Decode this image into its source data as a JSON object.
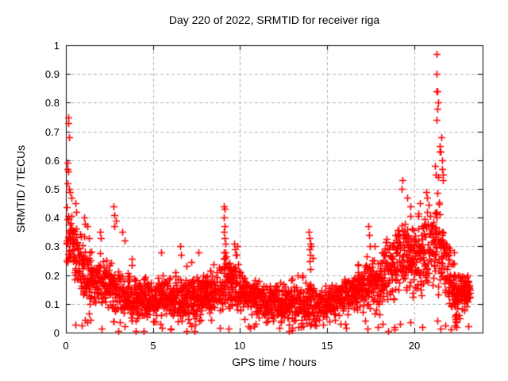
{
  "figure": {
    "title": "Day 220 of 2022, SRMTID for receiver riga",
    "xlabel": "GPS time / hours",
    "ylabel": "SRMTID / TECUs",
    "background_color": "#ffffff",
    "border_color": "#000000",
    "grid_color": "#b0b0b0",
    "marker_color": "#ff0000"
  },
  "chart_data": {
    "type": "scatter",
    "title": "Day 220 of 2022, SRMTID for receiver riga",
    "xlabel": "GPS time / hours",
    "ylabel": "SRMTID / TECUs",
    "xlim": [
      0,
      23.92
    ],
    "ylim": [
      0,
      1
    ],
    "x_ticks": [
      0,
      5,
      10,
      15,
      20
    ],
    "y_ticks": [
      0,
      0.1,
      0.2,
      0.3,
      0.4,
      0.5,
      0.6,
      0.7,
      0.8,
      0.9,
      1
    ],
    "y_tick_labels": [
      "0",
      "0.1",
      "0.2",
      "0.3",
      "0.4",
      "0.5",
      "0.6",
      "0.7",
      "0.8",
      "0.9",
      "1"
    ],
    "grid": true,
    "grid_style": "dashed",
    "legend": "none",
    "series": [
      {
        "name": "SRMTID",
        "marker": "+",
        "color": "#ff0000",
        "band_profile": [
          [
            0.05,
            0.34,
            0.14
          ],
          [
            0.4,
            0.3,
            0.12
          ],
          [
            0.8,
            0.25,
            0.1
          ],
          [
            1.3,
            0.2,
            0.09
          ],
          [
            2.0,
            0.17,
            0.08
          ],
          [
            3.0,
            0.14,
            0.08
          ],
          [
            4.0,
            0.12,
            0.07
          ],
          [
            5.0,
            0.12,
            0.07
          ],
          [
            6.0,
            0.13,
            0.07
          ],
          [
            7.0,
            0.12,
            0.07
          ],
          [
            8.0,
            0.13,
            0.07
          ],
          [
            8.8,
            0.15,
            0.08
          ],
          [
            9.1,
            0.19,
            0.1
          ],
          [
            9.7,
            0.18,
            0.09
          ],
          [
            10.3,
            0.13,
            0.07
          ],
          [
            11.0,
            0.11,
            0.06
          ],
          [
            12.0,
            0.1,
            0.06
          ],
          [
            13.0,
            0.1,
            0.06
          ],
          [
            13.6,
            0.09,
            0.06
          ],
          [
            14.0,
            0.12,
            0.09
          ],
          [
            14.5,
            0.09,
            0.06
          ],
          [
            15.2,
            0.11,
            0.06
          ],
          [
            16.0,
            0.13,
            0.06
          ],
          [
            16.8,
            0.15,
            0.07
          ],
          [
            17.4,
            0.18,
            0.09
          ],
          [
            18.0,
            0.18,
            0.09
          ],
          [
            18.7,
            0.24,
            0.11
          ],
          [
            19.5,
            0.28,
            0.12
          ],
          [
            20.2,
            0.27,
            0.12
          ],
          [
            20.8,
            0.3,
            0.13
          ],
          [
            21.4,
            0.33,
            0.15
          ],
          [
            21.9,
            0.23,
            0.1
          ],
          [
            22.35,
            0.12,
            0.1
          ],
          [
            22.7,
            0.14,
            0.06
          ],
          [
            23.15,
            0.14,
            0.05
          ]
        ],
        "notable_points": [
          [
            0.13,
            0.75
          ],
          [
            0.14,
            0.73
          ],
          [
            0.16,
            0.68
          ],
          [
            0.1,
            0.59
          ],
          [
            0.11,
            0.57
          ],
          [
            0.12,
            0.56
          ],
          [
            0.09,
            0.52
          ],
          [
            0.18,
            0.5
          ],
          [
            0.22,
            0.49
          ],
          [
            0.3,
            0.47
          ],
          [
            0.55,
            0.45
          ],
          [
            0.6,
            0.42
          ],
          [
            1.05,
            0.4
          ],
          [
            1.25,
            0.37
          ],
          [
            1.95,
            0.35
          ],
          [
            2.0,
            0.33
          ],
          [
            2.75,
            0.44
          ],
          [
            2.8,
            0.41
          ],
          [
            2.85,
            0.39
          ],
          [
            2.78,
            0.37
          ],
          [
            3.25,
            0.35
          ],
          [
            3.35,
            0.32
          ],
          [
            5.45,
            0.28
          ],
          [
            6.55,
            0.3
          ],
          [
            6.6,
            0.27
          ],
          [
            7.6,
            0.28
          ],
          [
            9.05,
            0.44
          ],
          [
            9.1,
            0.43
          ],
          [
            9.08,
            0.4
          ],
          [
            9.12,
            0.37
          ],
          [
            9.06,
            0.35
          ],
          [
            9.1,
            0.33
          ],
          [
            9.14,
            0.31
          ],
          [
            9.08,
            0.28
          ],
          [
            9.12,
            0.26
          ],
          [
            9.65,
            0.31
          ],
          [
            9.7,
            0.29
          ],
          [
            9.75,
            0.27
          ],
          [
            13.95,
            0.35
          ],
          [
            14.0,
            0.33
          ],
          [
            14.02,
            0.31
          ],
          [
            13.98,
            0.29
          ],
          [
            14.05,
            0.27
          ],
          [
            14.0,
            0.25
          ],
          [
            14.1,
            0.3
          ],
          [
            14.15,
            0.26
          ],
          [
            14.03,
            0.22
          ],
          [
            17.35,
            0.37
          ],
          [
            17.4,
            0.34
          ],
          [
            17.45,
            0.3
          ],
          [
            19.3,
            0.53
          ],
          [
            19.25,
            0.5
          ],
          [
            19.6,
            0.47
          ],
          [
            20.3,
            0.45
          ],
          [
            20.7,
            0.49
          ],
          [
            20.75,
            0.47
          ],
          [
            21.28,
            0.97
          ],
          [
            21.3,
            0.9
          ],
          [
            21.28,
            0.84
          ],
          [
            21.33,
            0.84
          ],
          [
            21.35,
            0.8
          ],
          [
            21.32,
            0.78
          ],
          [
            21.3,
            0.74
          ],
          [
            21.55,
            0.68
          ],
          [
            21.45,
            0.65
          ],
          [
            21.48,
            0.63
          ],
          [
            21.52,
            0.63
          ],
          [
            21.58,
            0.6
          ],
          [
            21.6,
            0.57
          ],
          [
            21.62,
            0.55
          ],
          [
            21.65,
            0.53
          ],
          [
            21.2,
            0.58
          ],
          [
            21.22,
            0.55
          ],
          [
            22.28,
            0.28
          ],
          [
            22.3,
            0.24
          ],
          [
            22.32,
            0.2
          ],
          [
            22.34,
            0.16
          ],
          [
            22.36,
            0.12
          ],
          [
            22.33,
            0.09
          ],
          [
            22.35,
            0.06
          ],
          [
            22.38,
            0.04
          ],
          [
            22.4,
            0.02
          ],
          [
            23.05,
            0.2
          ],
          [
            23.1,
            0.18
          ],
          [
            23.15,
            0.15
          ]
        ],
        "sampling": {
          "x_start": 0.04,
          "x_end": 23.18,
          "epoch_step_hours": 0.045,
          "points_per_epoch_min": 3,
          "points_per_epoch_max": 6,
          "seed": 2022220
        }
      }
    ]
  }
}
